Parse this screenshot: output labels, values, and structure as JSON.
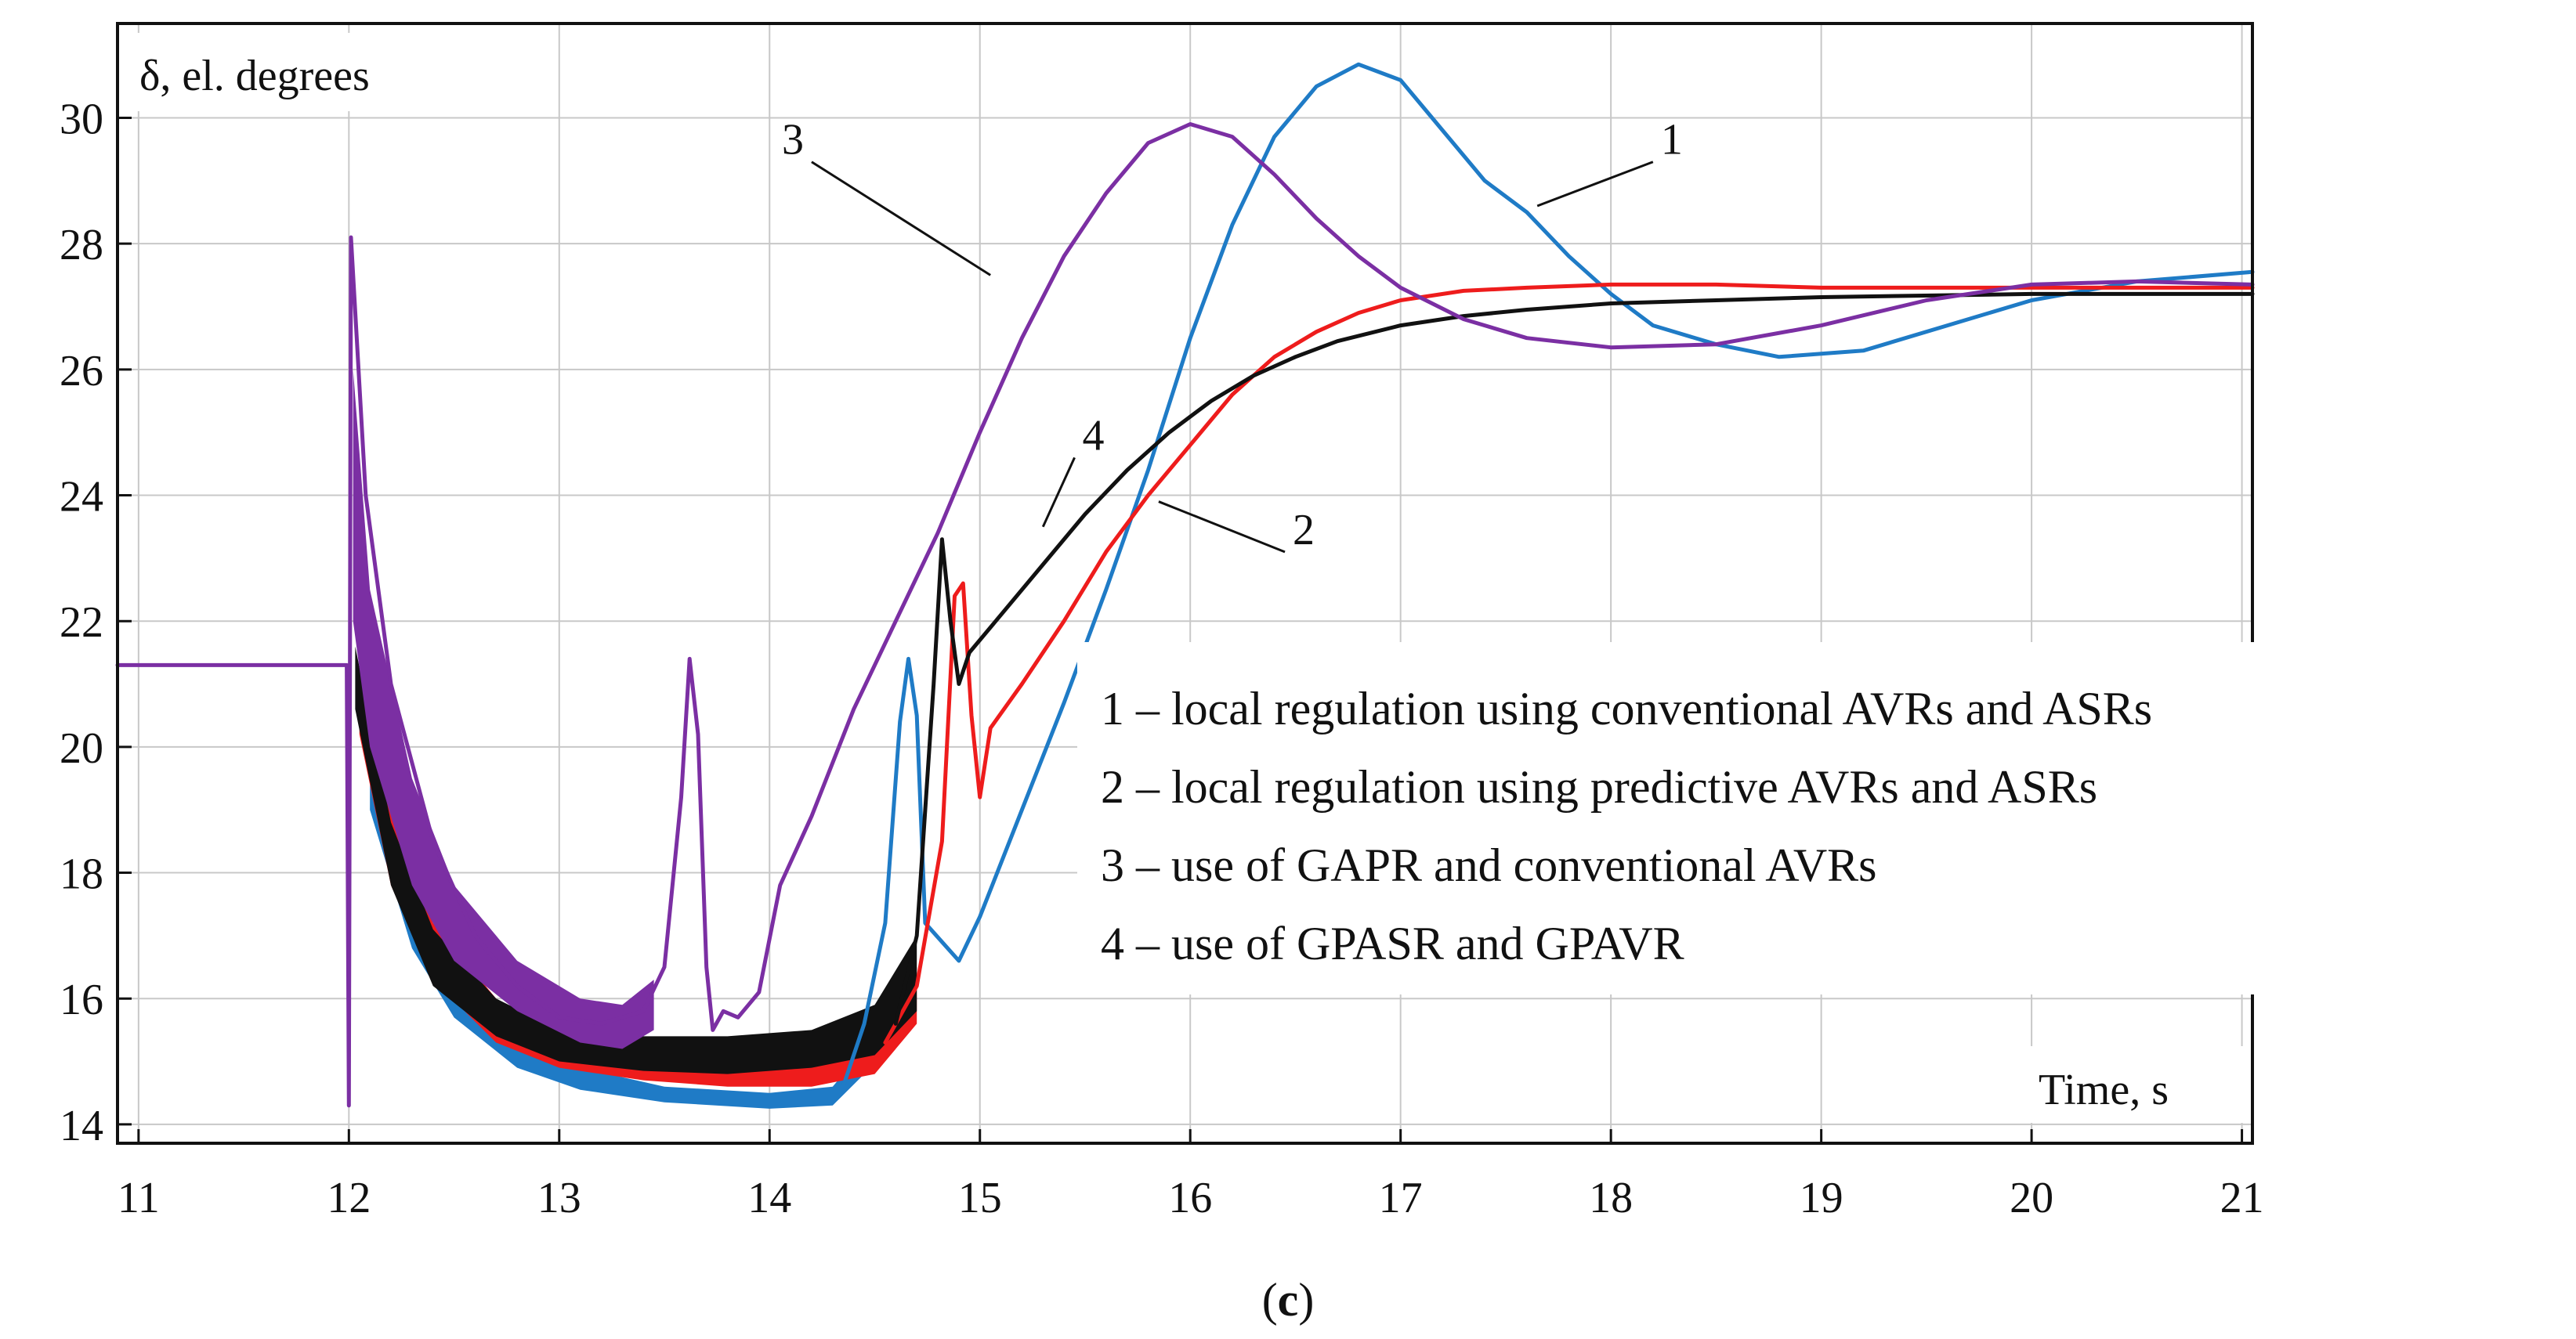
{
  "chart_data": {
    "type": "line",
    "ylabel": "δ, el. degrees",
    "xlabel": "Time, s",
    "caption_open": "(",
    "caption_letter": "c",
    "caption_close": ")",
    "xlim": [
      10.9,
      21.05
    ],
    "ylim": [
      13.7,
      31.5
    ],
    "x_ticks": [
      11,
      12,
      13,
      14,
      15,
      16,
      17,
      18,
      19,
      20,
      21
    ],
    "x_tick_labels": [
      "11",
      "12",
      "13",
      "14",
      "15",
      "16",
      "17",
      "18",
      "19",
      "20",
      "21"
    ],
    "y_ticks": [
      14,
      16,
      18,
      20,
      22,
      24,
      26,
      28,
      30
    ],
    "y_tick_labels": [
      "14",
      "16",
      "18",
      "20",
      "22",
      "24",
      "26",
      "28",
      "30"
    ],
    "colors": {
      "s1": "#1f7bc6",
      "s2": "#ee1c1c",
      "s3": "#7b2fa3",
      "s4": "#111111"
    },
    "legend": [
      "1 – local regulation using conventional AVRs and ASRs",
      "2 – local regulation using predictive AVRs and ASRs",
      "3 – use of GAPR and conventional AVRs",
      "4 – use of GPASR and GPAVR"
    ],
    "callouts": [
      {
        "label": "1",
        "series": "s1",
        "x": 17.65,
        "y": 28.6,
        "tx": 18.2,
        "ty": 29.3
      },
      {
        "label": "2",
        "series": "s2",
        "x": 15.85,
        "y": 23.9,
        "tx": 16.45,
        "ty": 23.1
      },
      {
        "label": "3",
        "series": "s3",
        "x": 15.05,
        "y": 27.5,
        "tx": 14.2,
        "ty": 29.3
      },
      {
        "label": "4",
        "series": "s4",
        "x": 15.3,
        "y": 23.5,
        "tx": 15.45,
        "ty": 24.6
      }
    ],
    "series": [
      {
        "id": "s1",
        "name": "1 – local regulation using conventional AVRs and ASRs",
        "color": "#1f7bc6",
        "points": [
          [
            14.35,
            14.6
          ],
          [
            14.45,
            15.6
          ],
          [
            14.55,
            17.2
          ],
          [
            14.62,
            20.4
          ],
          [
            14.66,
            21.4
          ],
          [
            14.7,
            20.5
          ],
          [
            14.74,
            17.2
          ],
          [
            14.82,
            16.9
          ],
          [
            14.9,
            16.6
          ],
          [
            15.0,
            17.3
          ],
          [
            15.2,
            19.0
          ],
          [
            15.4,
            20.7
          ],
          [
            15.6,
            22.5
          ],
          [
            15.8,
            24.4
          ],
          [
            16.0,
            26.5
          ],
          [
            16.2,
            28.3
          ],
          [
            16.4,
            29.7
          ],
          [
            16.6,
            30.5
          ],
          [
            16.8,
            30.85
          ],
          [
            17.0,
            30.6
          ],
          [
            17.2,
            29.8
          ],
          [
            17.4,
            29.0
          ],
          [
            17.6,
            28.5
          ],
          [
            17.8,
            27.8
          ],
          [
            18.0,
            27.2
          ],
          [
            18.2,
            26.7
          ],
          [
            18.5,
            26.4
          ],
          [
            18.8,
            26.2
          ],
          [
            19.2,
            26.3
          ],
          [
            19.6,
            26.7
          ],
          [
            20.0,
            27.1
          ],
          [
            20.5,
            27.4
          ],
          [
            21.05,
            27.55
          ]
        ]
      },
      {
        "id": "s2",
        "name": "2 – local regulation using predictive AVRs and ASRs",
        "color": "#ee1c1c",
        "points": [
          [
            14.55,
            15.3
          ],
          [
            14.7,
            16.2
          ],
          [
            14.82,
            18.5
          ],
          [
            14.88,
            22.4
          ],
          [
            14.92,
            22.6
          ],
          [
            14.96,
            20.5
          ],
          [
            15.0,
            19.2
          ],
          [
            15.05,
            20.3
          ],
          [
            15.2,
            21.0
          ],
          [
            15.4,
            22.0
          ],
          [
            15.6,
            23.1
          ],
          [
            15.8,
            24.0
          ],
          [
            16.0,
            24.8
          ],
          [
            16.2,
            25.6
          ],
          [
            16.4,
            26.2
          ],
          [
            16.6,
            26.6
          ],
          [
            16.8,
            26.9
          ],
          [
            17.0,
            27.1
          ],
          [
            17.3,
            27.25
          ],
          [
            17.6,
            27.3
          ],
          [
            18.0,
            27.35
          ],
          [
            18.5,
            27.35
          ],
          [
            19.0,
            27.3
          ],
          [
            20.0,
            27.3
          ],
          [
            21.05,
            27.3
          ]
        ]
      },
      {
        "id": "s3",
        "name": "3 – use of GAPR and conventional AVRs",
        "color": "#7b2fa3",
        "points": [
          [
            10.9,
            21.3
          ],
          [
            11.99,
            21.3
          ],
          [
            12.0,
            14.3
          ],
          [
            12.01,
            28.1
          ],
          [
            12.08,
            24.0
          ],
          [
            12.2,
            21.0
          ],
          [
            12.4,
            18.5
          ],
          [
            12.6,
            17.0
          ],
          [
            12.8,
            16.2
          ],
          [
            13.0,
            15.7
          ],
          [
            13.2,
            15.6
          ],
          [
            13.4,
            15.8
          ],
          [
            13.5,
            16.5
          ],
          [
            13.58,
            19.2
          ],
          [
            13.62,
            21.4
          ],
          [
            13.66,
            20.2
          ],
          [
            13.7,
            16.5
          ],
          [
            13.73,
            15.5
          ],
          [
            13.78,
            15.8
          ],
          [
            13.85,
            15.7
          ],
          [
            13.95,
            16.1
          ],
          [
            14.05,
            17.8
          ],
          [
            14.2,
            18.9
          ],
          [
            14.4,
            20.6
          ],
          [
            14.6,
            22.0
          ],
          [
            14.8,
            23.4
          ],
          [
            15.0,
            25.0
          ],
          [
            15.2,
            26.5
          ],
          [
            15.4,
            27.8
          ],
          [
            15.6,
            28.8
          ],
          [
            15.8,
            29.6
          ],
          [
            16.0,
            29.9
          ],
          [
            16.2,
            29.7
          ],
          [
            16.4,
            29.1
          ],
          [
            16.6,
            28.4
          ],
          [
            16.8,
            27.8
          ],
          [
            17.0,
            27.3
          ],
          [
            17.3,
            26.8
          ],
          [
            17.6,
            26.5
          ],
          [
            18.0,
            26.35
          ],
          [
            18.5,
            26.4
          ],
          [
            19.0,
            26.7
          ],
          [
            19.5,
            27.1
          ],
          [
            20.0,
            27.35
          ],
          [
            20.5,
            27.4
          ],
          [
            21.05,
            27.35
          ]
        ]
      },
      {
        "id": "s4",
        "name": "4 – use of GPASR and GPAVR",
        "color": "#111111",
        "points": [
          [
            14.6,
            15.6
          ],
          [
            14.7,
            17.0
          ],
          [
            14.78,
            21.0
          ],
          [
            14.82,
            23.3
          ],
          [
            14.86,
            22.0
          ],
          [
            14.9,
            21.0
          ],
          [
            14.95,
            21.5
          ],
          [
            15.1,
            22.1
          ],
          [
            15.3,
            22.9
          ],
          [
            15.5,
            23.7
          ],
          [
            15.7,
            24.4
          ],
          [
            15.9,
            25.0
          ],
          [
            16.1,
            25.5
          ],
          [
            16.3,
            25.9
          ],
          [
            16.5,
            26.2
          ],
          [
            16.7,
            26.45
          ],
          [
            17.0,
            26.7
          ],
          [
            17.3,
            26.85
          ],
          [
            17.6,
            26.95
          ],
          [
            18.0,
            27.05
          ],
          [
            18.5,
            27.1
          ],
          [
            19.0,
            27.15
          ],
          [
            20.0,
            27.2
          ],
          [
            21.05,
            27.2
          ]
        ]
      }
    ],
    "oscillation_bands": [
      {
        "id": "s1",
        "color": "#1f7bc6",
        "upper": [
          [
            12.1,
            19.8
          ],
          [
            12.3,
            17.5
          ],
          [
            12.5,
            16.2
          ],
          [
            12.8,
            15.3
          ],
          [
            13.1,
            14.9
          ],
          [
            13.5,
            14.6
          ],
          [
            14.0,
            14.5
          ],
          [
            14.3,
            14.6
          ],
          [
            14.45,
            15.2
          ]
        ],
        "lower": [
          [
            12.1,
            19.0
          ],
          [
            12.3,
            16.8
          ],
          [
            12.5,
            15.7
          ],
          [
            12.8,
            14.9
          ],
          [
            13.1,
            14.55
          ],
          [
            13.5,
            14.35
          ],
          [
            14.0,
            14.25
          ],
          [
            14.3,
            14.3
          ],
          [
            14.45,
            14.8
          ]
        ]
      },
      {
        "id": "s2",
        "color": "#ee1c1c",
        "upper": [
          [
            12.05,
            21.0
          ],
          [
            12.2,
            19.0
          ],
          [
            12.4,
            17.2
          ],
          [
            12.7,
            16.0
          ],
          [
            13.0,
            15.4
          ],
          [
            13.4,
            15.1
          ],
          [
            13.8,
            15.0
          ],
          [
            14.2,
            15.0
          ],
          [
            14.5,
            15.3
          ],
          [
            14.7,
            16.5
          ]
        ],
        "lower": [
          [
            12.05,
            20.2
          ],
          [
            12.2,
            17.8
          ],
          [
            12.4,
            16.3
          ],
          [
            12.7,
            15.3
          ],
          [
            13.0,
            14.9
          ],
          [
            13.4,
            14.7
          ],
          [
            13.8,
            14.6
          ],
          [
            14.2,
            14.6
          ],
          [
            14.5,
            14.8
          ],
          [
            14.7,
            15.6
          ]
        ]
      },
      {
        "id": "s4",
        "color": "#111111",
        "upper": [
          [
            12.03,
            21.6
          ],
          [
            12.2,
            18.8
          ],
          [
            12.4,
            17.1
          ],
          [
            12.7,
            16.0
          ],
          [
            13.0,
            15.5
          ],
          [
            13.4,
            15.4
          ],
          [
            13.8,
            15.4
          ],
          [
            14.2,
            15.5
          ],
          [
            14.5,
            15.9
          ],
          [
            14.7,
            17.0
          ]
        ],
        "lower": [
          [
            12.03,
            20.6
          ],
          [
            12.2,
            17.8
          ],
          [
            12.4,
            16.2
          ],
          [
            12.7,
            15.4
          ],
          [
            13.0,
            15.0
          ],
          [
            13.4,
            14.85
          ],
          [
            13.8,
            14.8
          ],
          [
            14.2,
            14.9
          ],
          [
            14.5,
            15.1
          ],
          [
            14.7,
            15.8
          ]
        ]
      },
      {
        "id": "s3",
        "color": "#7b2fa3",
        "upper": [
          [
            12.02,
            26.0
          ],
          [
            12.1,
            22.5
          ],
          [
            12.3,
            19.5
          ],
          [
            12.5,
            17.8
          ],
          [
            12.8,
            16.6
          ],
          [
            13.1,
            16.0
          ],
          [
            13.3,
            15.9
          ],
          [
            13.45,
            16.3
          ]
        ],
        "lower": [
          [
            12.02,
            22.0
          ],
          [
            12.1,
            20.0
          ],
          [
            12.3,
            17.8
          ],
          [
            12.5,
            16.6
          ],
          [
            12.8,
            15.8
          ],
          [
            13.1,
            15.3
          ],
          [
            13.3,
            15.2
          ],
          [
            13.45,
            15.5
          ]
        ]
      }
    ]
  }
}
